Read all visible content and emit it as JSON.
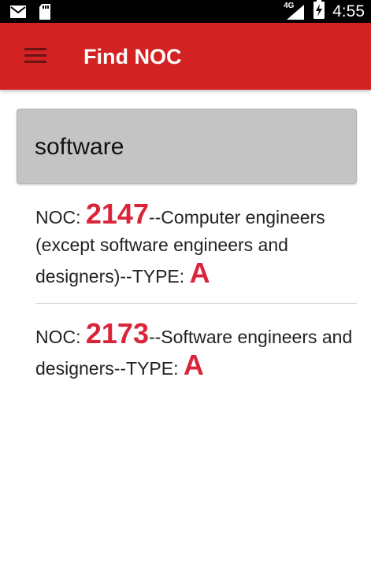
{
  "status_bar": {
    "network": "4G",
    "time": "4:55",
    "icons": [
      "mail-icon",
      "sd-card-icon",
      "signal-icon",
      "battery-charging-icon"
    ]
  },
  "app_bar": {
    "title": "Find NOC",
    "menu_icon": "hamburger-menu-icon"
  },
  "search": {
    "value": "software"
  },
  "results": [
    {
      "prefix": "NOC: ",
      "code": "2147",
      "description": "--Computer engineers (except software engineers and designers)--TYPE: ",
      "type": "A"
    },
    {
      "prefix": "NOC: ",
      "code": "2173",
      "description": "--Software engineers and designers--TYPE: ",
      "type": "A"
    }
  ],
  "colors": {
    "app_bar": "#d32222",
    "accent": "#d9253a",
    "search_bg": "#c4c4c4"
  }
}
